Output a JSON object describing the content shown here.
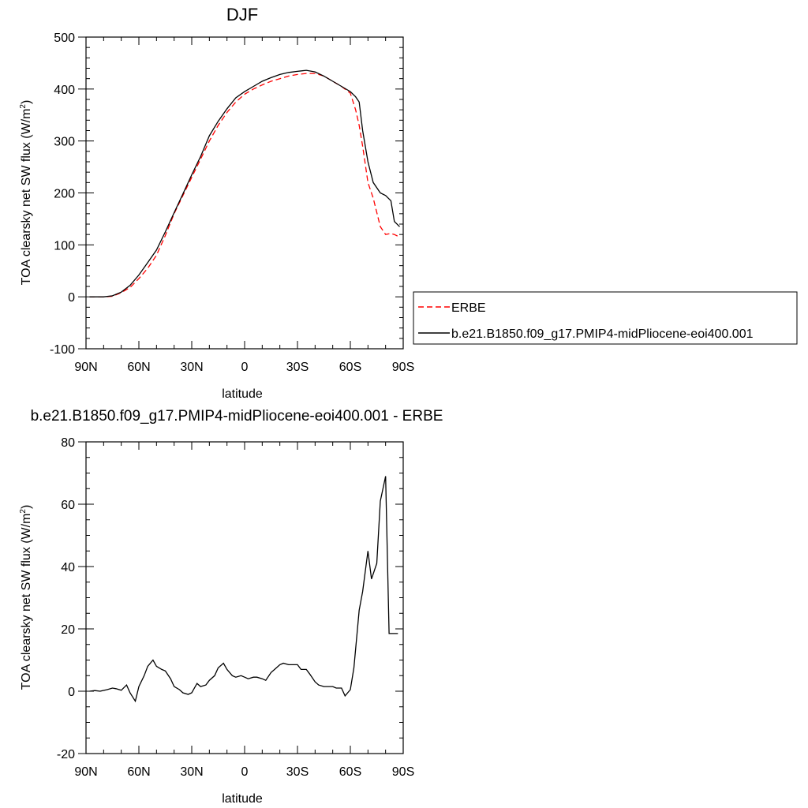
{
  "chart_data": [
    {
      "type": "line",
      "title": "DJF",
      "xlabel": "latitude",
      "ylabel": "TOA clearsky net SW flux (W/m",
      "ylabel_sup": "2",
      "ylabel_close": ")",
      "xlim": [
        90,
        -90
      ],
      "ylim": [
        -100,
        500
      ],
      "x_ticks": [
        {
          "v": 90,
          "label": "90N"
        },
        {
          "v": 60,
          "label": "60N"
        },
        {
          "v": 30,
          "label": "30N"
        },
        {
          "v": 0,
          "label": "0"
        },
        {
          "v": -30,
          "label": "30S"
        },
        {
          "v": -60,
          "label": "60S"
        },
        {
          "v": -90,
          "label": "90S"
        }
      ],
      "y_ticks": [
        -100,
        0,
        100,
        200,
        300,
        400,
        500
      ],
      "legend": "right, outside plot",
      "series": [
        {
          "name": "ERBE",
          "color": "#ff0000",
          "dash": "dashed",
          "x": [
            88,
            85,
            80,
            75,
            70,
            65,
            60,
            55,
            50,
            45,
            40,
            35,
            30,
            25,
            20,
            15,
            10,
            5,
            0,
            -5,
            -10,
            -15,
            -20,
            -25,
            -30,
            -35,
            -40,
            -45,
            -50,
            -55,
            -60,
            -63,
            -65,
            -67,
            -70,
            -73,
            -77,
            -80,
            -83,
            -85,
            -88
          ],
          "values": [
            0,
            0,
            0,
            1,
            8,
            18,
            35,
            55,
            80,
            118,
            160,
            195,
            230,
            265,
            300,
            330,
            355,
            375,
            390,
            400,
            408,
            415,
            420,
            425,
            428,
            430,
            430,
            425,
            415,
            405,
            392,
            360,
            330,
            290,
            220,
            190,
            135,
            120,
            122,
            120,
            115
          ]
        },
        {
          "name": "b.e21.B1850.f09_g17.PMIP4-midPliocene-eoi400.001",
          "color": "#000000",
          "dash": "solid",
          "x": [
            88,
            85,
            80,
            75,
            70,
            65,
            60,
            55,
            50,
            45,
            40,
            35,
            30,
            25,
            20,
            15,
            10,
            5,
            0,
            -5,
            -10,
            -15,
            -20,
            -25,
            -30,
            -35,
            -40,
            -45,
            -50,
            -55,
            -60,
            -63,
            -65,
            -67,
            -70,
            -73,
            -77,
            -80,
            -83,
            -85,
            -88
          ],
          "values": [
            0,
            0,
            0,
            2,
            9,
            22,
            42,
            66,
            90,
            125,
            162,
            198,
            235,
            270,
            310,
            338,
            362,
            383,
            395,
            405,
            415,
            422,
            428,
            432,
            434,
            436,
            433,
            425,
            415,
            405,
            395,
            385,
            375,
            320,
            260,
            220,
            200,
            195,
            185,
            145,
            135
          ]
        }
      ]
    },
    {
      "type": "line",
      "title": "b.e21.B1850.f09_g17.PMIP4-midPliocene-eoi400.001 - ERBE",
      "xlabel": "latitude",
      "ylabel": "TOA clearsky net SW flux (W/m",
      "ylabel_sup": "2",
      "ylabel_close": ")",
      "xlim": [
        90,
        -90
      ],
      "ylim": [
        -20,
        80
      ],
      "x_ticks": [
        {
          "v": 90,
          "label": "90N"
        },
        {
          "v": 60,
          "label": "60N"
        },
        {
          "v": 30,
          "label": "30N"
        },
        {
          "v": 0,
          "label": "0"
        },
        {
          "v": -30,
          "label": "30S"
        },
        {
          "v": -60,
          "label": "60S"
        },
        {
          "v": -90,
          "label": "90S"
        }
      ],
      "y_ticks": [
        -20,
        0,
        20,
        40,
        60,
        80
      ],
      "series": [
        {
          "name": "",
          "color": "#000000",
          "dash": "solid",
          "x": [
            88,
            85,
            82,
            78,
            75,
            73,
            70,
            67,
            65,
            62,
            60,
            57,
            55,
            52,
            50,
            47,
            45,
            42,
            40,
            37,
            35,
            32,
            30,
            27,
            25,
            22,
            20,
            17,
            15,
            12,
            10,
            7,
            5,
            2,
            0,
            -2,
            -5,
            -7,
            -10,
            -12,
            -15,
            -17,
            -20,
            -22,
            -25,
            -27,
            -30,
            -32,
            -35,
            -37,
            -40,
            -42,
            -45,
            -47,
            -50,
            -52,
            -55,
            -57,
            -60,
            -62,
            -65,
            -67,
            -70,
            -72,
            -75,
            -77,
            -80,
            -82,
            -85,
            -87
          ],
          "values": [
            0,
            0.2,
            0,
            0.5,
            1,
            0.8,
            0.3,
            2,
            -0.5,
            -3.2,
            1.5,
            5,
            8,
            10,
            8,
            7,
            6.5,
            4,
            1.5,
            0.5,
            -0.5,
            -1,
            -0.5,
            2.5,
            1.5,
            2,
            3.5,
            5,
            7.5,
            9,
            7,
            5,
            4.5,
            5,
            4.5,
            4,
            4.5,
            4.5,
            4,
            3.5,
            6,
            7,
            8.5,
            9,
            8.5,
            8.5,
            8.5,
            7,
            7,
            5.5,
            3,
            2,
            1.5,
            1.5,
            1.5,
            1,
            1,
            -1.5,
            0.5,
            7.5,
            26,
            32,
            45,
            36,
            41,
            61,
            69,
            18.5,
            18.5,
            18.5
          ]
        }
      ]
    }
  ]
}
